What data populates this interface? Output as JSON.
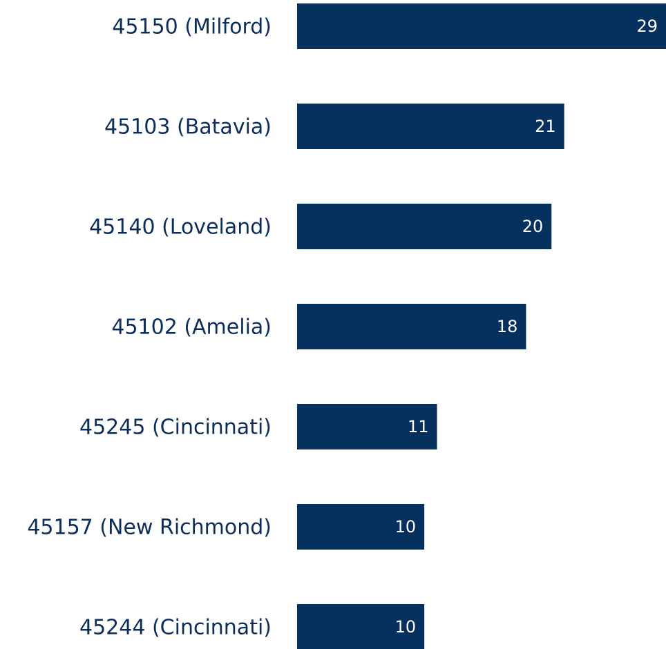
{
  "chart_data": {
    "type": "bar",
    "orientation": "horizontal",
    "categories": [
      "45150 (Milford)",
      "45103 (Batavia)",
      "45140 (Loveland)",
      "45102 (Amelia)",
      "45245 (Cincinnati)",
      "45157 (New Richmond)",
      "45244 (Cincinnati)"
    ],
    "values": [
      29,
      21,
      20,
      18,
      11,
      10,
      10
    ],
    "color": "#06305e"
  }
}
